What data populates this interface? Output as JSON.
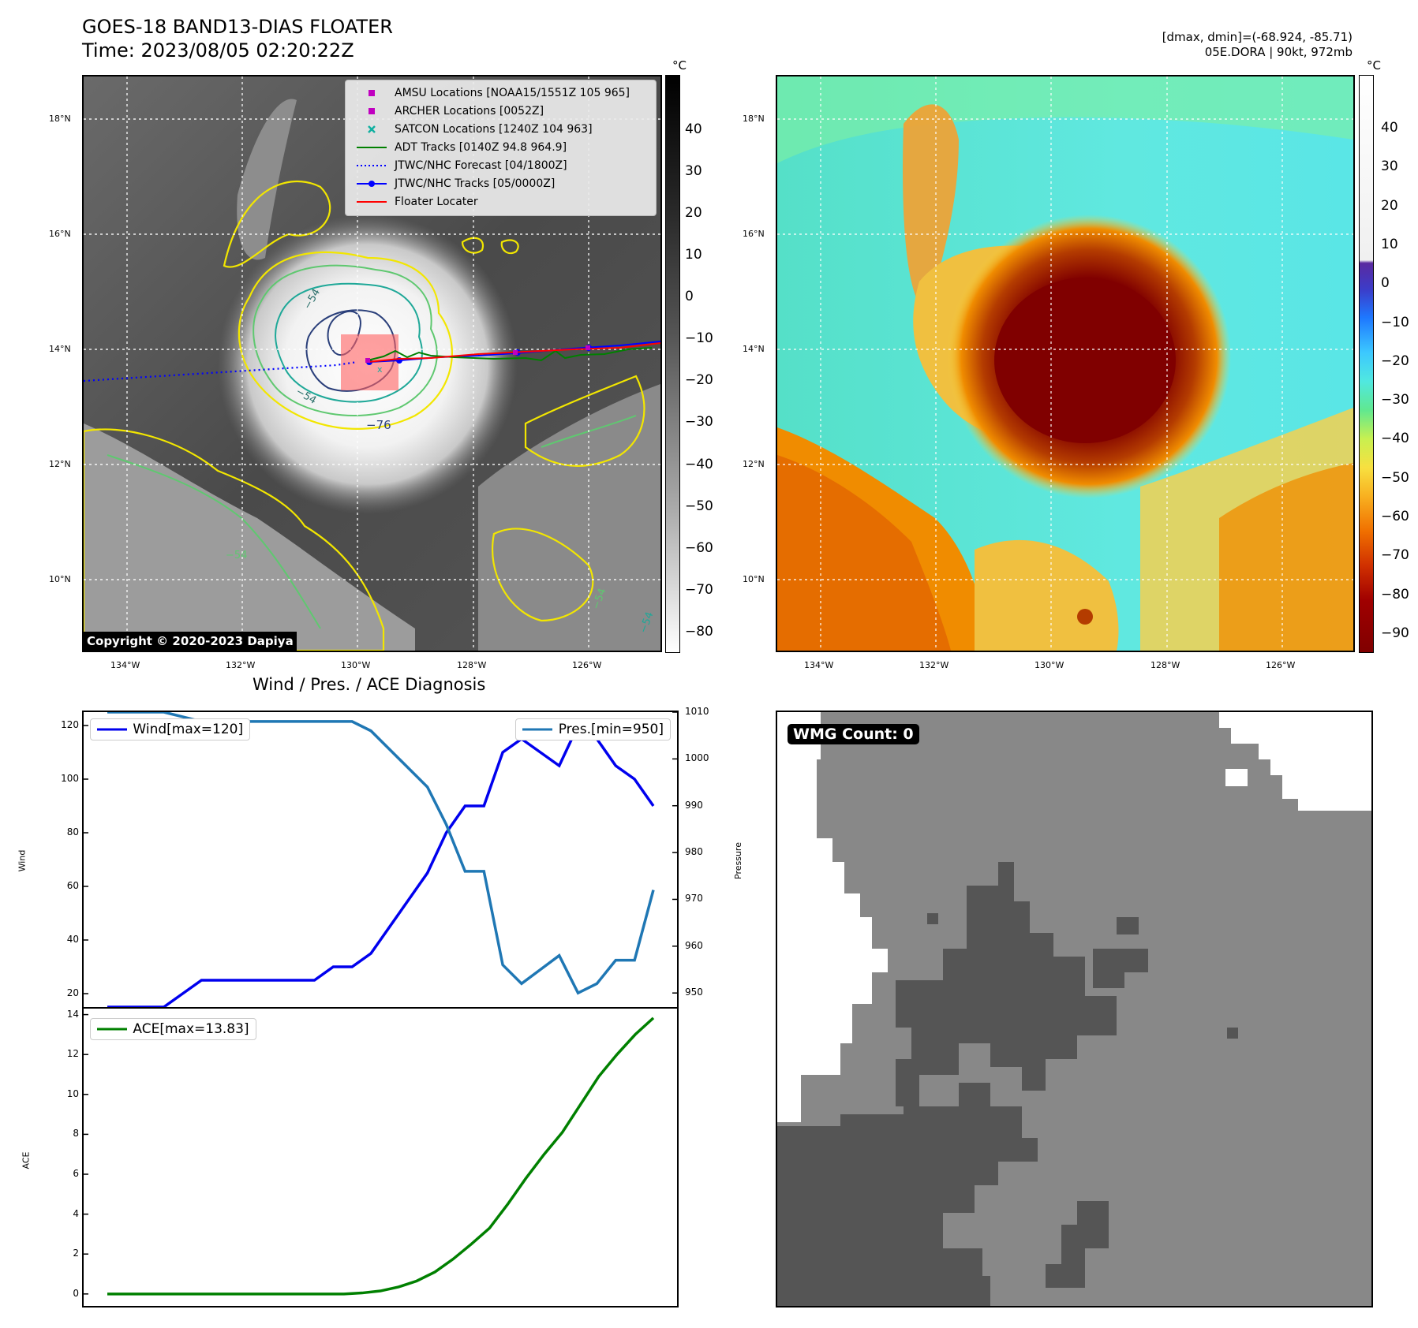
{
  "header": {
    "title": "GOES-18 BAND13-DIAS FLOATER",
    "time": "Time: 2023/08/05 02:20:22Z",
    "dstats": "[dmax, dmin]=(-68.924, -85.71)",
    "storm": "05E.DORA | 90kt, 972mb"
  },
  "map_left": {
    "colorbar_unit": "°C",
    "colorbar_ticks": [
      "40",
      "30",
      "20",
      "10",
      "0",
      "−10",
      "−20",
      "−30",
      "−40",
      "−50",
      "−60",
      "−70",
      "−80"
    ],
    "lat_labels": [
      "18°N",
      "16°N",
      "14°N",
      "12°N",
      "10°N"
    ],
    "lon_labels": [
      "134°W",
      "132°W",
      "130°W",
      "128°W",
      "126°W"
    ],
    "contour_labels": [
      "−54",
      "−54",
      "−76",
      "−54",
      "−54",
      "−54"
    ],
    "copyright": "Copyright © 2020-2023 Dapiya",
    "legend": [
      {
        "label": "AMSU Locations [NOAA15/1551Z 105 965]",
        "icon": "square-marker",
        "color": "#c000c0"
      },
      {
        "label": "ARCHER Locations [0052Z]",
        "icon": "square-marker",
        "color": "#c000c0"
      },
      {
        "label": "SATCON Locations [1240Z 104 963]",
        "icon": "x-marker",
        "color": "#10b0a0"
      },
      {
        "label": "ADT Tracks [0140Z 94.8 964.9]",
        "icon": "solid-line",
        "color": "#008000"
      },
      {
        "label": "JTWC/NHC Forecast [04/1800Z]",
        "icon": "dotted-line",
        "color": "#0000ff"
      },
      {
        "label": "JTWC/NHC Tracks [05/0000Z]",
        "icon": "line-dot",
        "color": "#0000ff"
      },
      {
        "label": "Floater Locater",
        "icon": "solid-line",
        "color": "#ff0000"
      }
    ]
  },
  "map_right": {
    "colorbar_unit": "°C",
    "colorbar_ticks": [
      "40",
      "30",
      "20",
      "10",
      "0",
      "−10",
      "−20",
      "−30",
      "−40",
      "−50",
      "−60",
      "−70",
      "−80",
      "−90"
    ],
    "lat_labels": [
      "18°N",
      "16°N",
      "14°N",
      "12°N",
      "10°N"
    ],
    "lon_labels": [
      "134°W",
      "132°W",
      "130°W",
      "128°W",
      "126°W"
    ]
  },
  "diagnosis": {
    "title": "Wind / Pres. / ACE Diagnosis",
    "wind_axis_label": "Wind",
    "pressure_axis_label": "Pressure",
    "ace_axis_label": "ACE",
    "wind_legend": "Wind[max=120]",
    "pres_legend": "Pres.[min=950]",
    "ace_legend": "ACE[max=13.83]"
  },
  "wmg": {
    "badge": "WMG Count: 0"
  },
  "chart_data": [
    {
      "type": "line",
      "title": "Wind / Pres. / ACE Diagnosis",
      "ylabel": "Wind",
      "y2label": "Pressure",
      "ylim": [
        15,
        125
      ],
      "y2lim": [
        947,
        1010
      ],
      "yticks": [
        20,
        40,
        60,
        80,
        100,
        120
      ],
      "y2ticks": [
        950,
        960,
        970,
        980,
        990,
        1000,
        1010
      ],
      "color_wind": "#0000ee",
      "color_pres": "#1f77b4",
      "series": [
        {
          "name": "Wind[max=120]",
          "axis": "left",
          "values": [
            15,
            15,
            15,
            15,
            20,
            25,
            25,
            25,
            25,
            25,
            25,
            25,
            30,
            30,
            35,
            45,
            55,
            65,
            80,
            90,
            90,
            110,
            115,
            110,
            105,
            120,
            115,
            105,
            100,
            90
          ]
        },
        {
          "name": "Pres.[min=950]",
          "axis": "right",
          "values": [
            1010,
            1010,
            1010,
            1010,
            1009,
            1008,
            1008,
            1008,
            1008,
            1008,
            1008,
            1008,
            1008,
            1008,
            1006,
            1002,
            998,
            994,
            986,
            976,
            976,
            956,
            952,
            955,
            958,
            950,
            952,
            957,
            957,
            972
          ]
        }
      ]
    },
    {
      "type": "line",
      "ylabel": "ACE",
      "ylim": [
        -0.6,
        14.3
      ],
      "yticks": [
        0,
        2,
        4,
        6,
        8,
        10,
        12,
        14
      ],
      "color": "#008000",
      "series": [
        {
          "name": "ACE[max=13.83]",
          "values": [
            0,
            0,
            0,
            0,
            0,
            0,
            0,
            0,
            0,
            0,
            0,
            0,
            0,
            0,
            0.05,
            0.15,
            0.35,
            0.65,
            1.1,
            1.75,
            2.5,
            3.3,
            4.5,
            5.8,
            7.0,
            8.1,
            9.5,
            10.9,
            12.0,
            13.0,
            13.83
          ]
        }
      ]
    }
  ]
}
